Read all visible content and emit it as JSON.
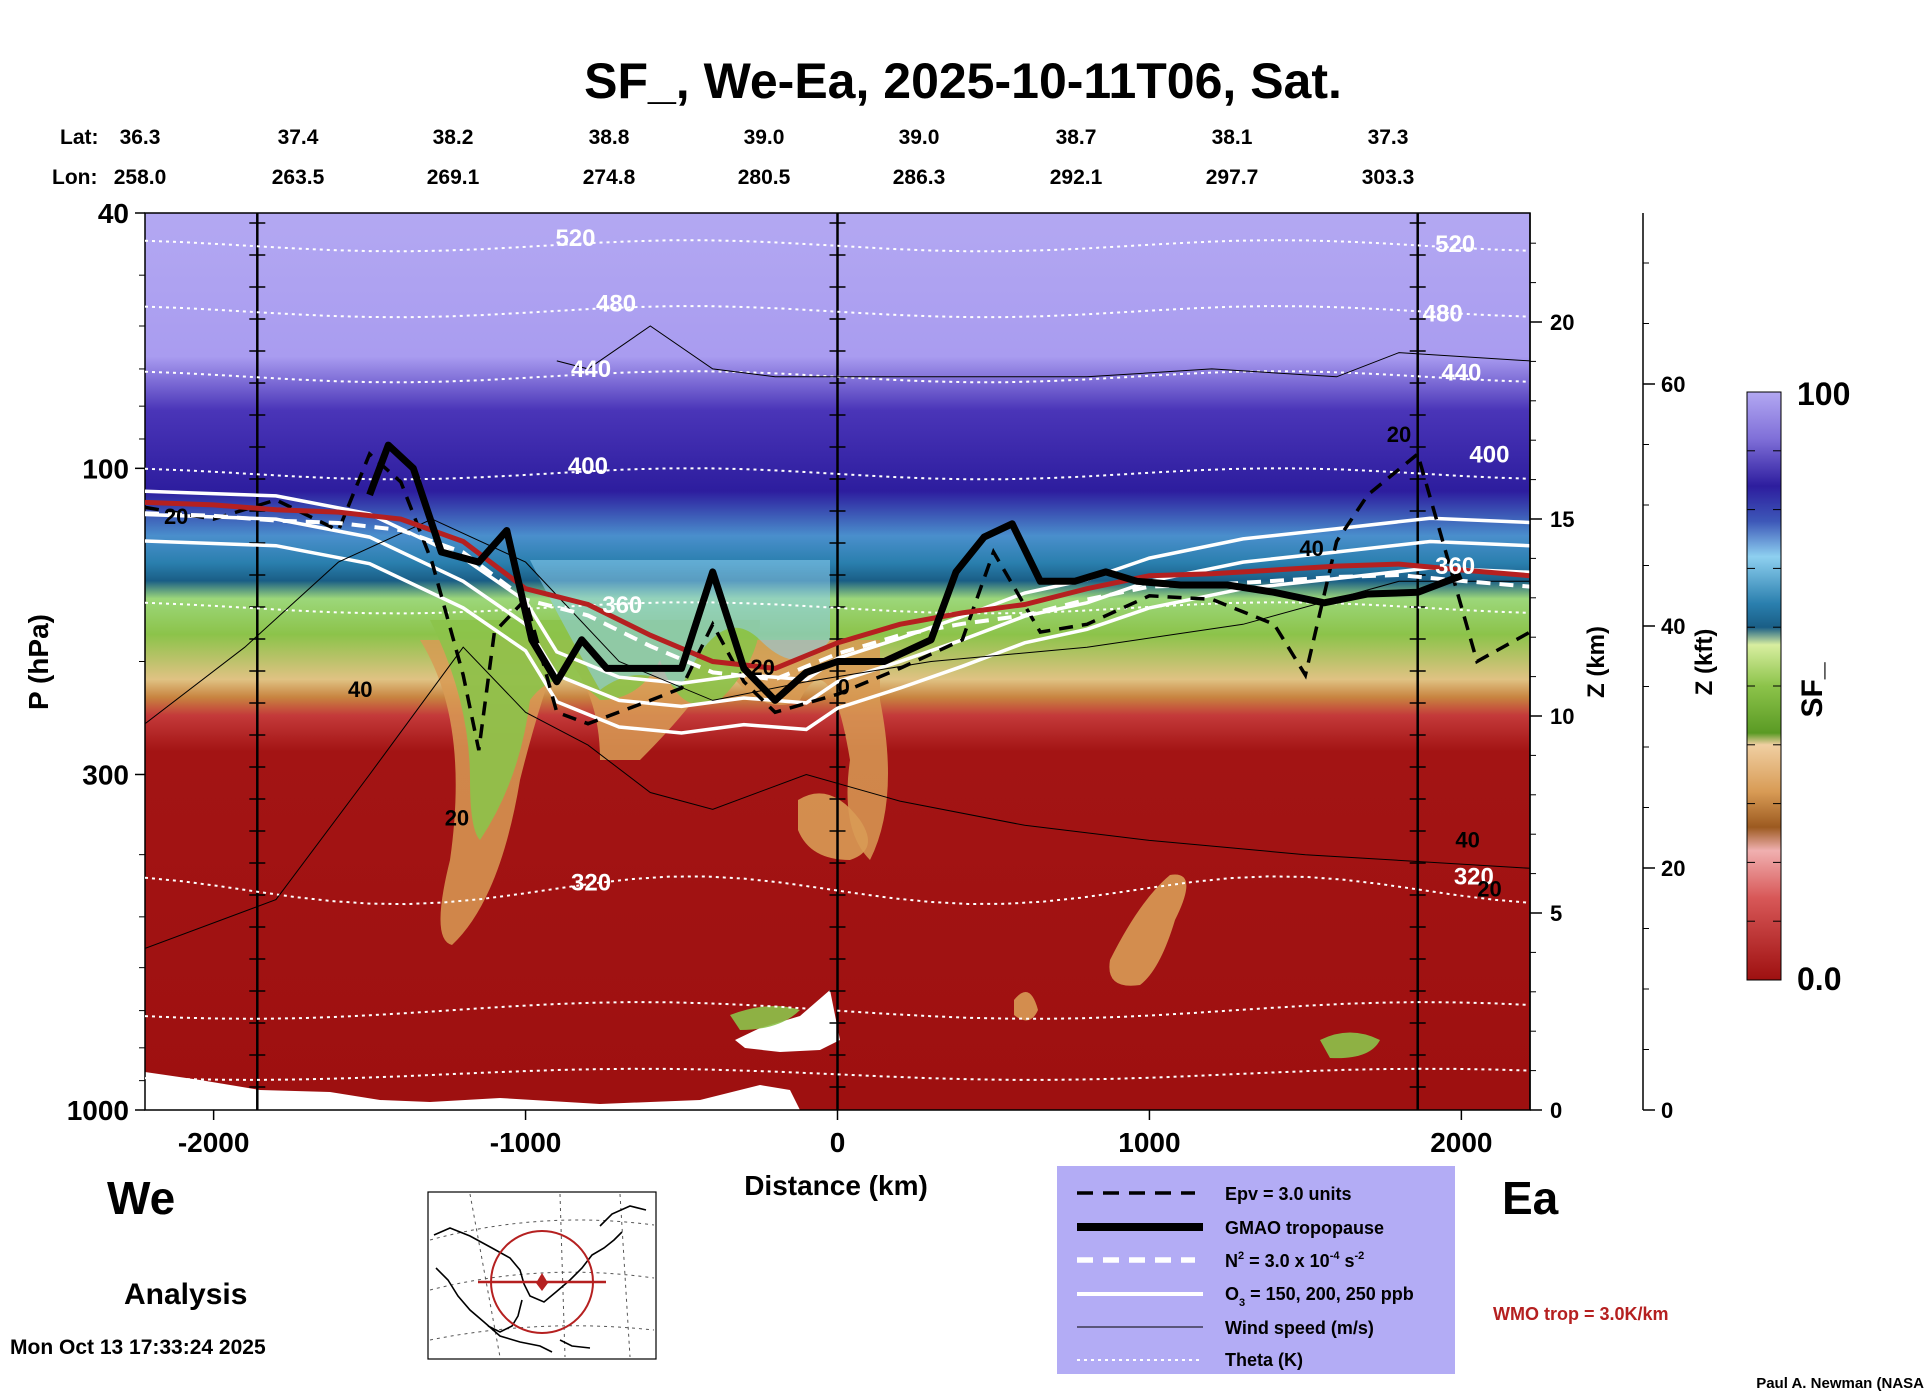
{
  "title": "SF_, We-Ea, 2025-10-11T06, Sat.",
  "lat_label": "Lat:",
  "lon_label": "Lon:",
  "lat_values": [
    "36.3",
    "37.4",
    "38.2",
    "38.8",
    "39.0",
    "39.0",
    "38.7",
    "38.1",
    "37.3"
  ],
  "lon_values": [
    "258.0",
    "263.5",
    "269.1",
    "274.8",
    "280.5",
    "286.3",
    "292.1",
    "297.7",
    "303.3"
  ],
  "left_word": "We",
  "right_word": "Ea",
  "analysis_label": "Analysis",
  "timestamp": "Mon Oct 13 17:33:24 2025",
  "credit": "Paul A. Newman (NASA",
  "wmo_note": "WMO trop = 3.0K/km",
  "legend": {
    "epv": "Epv = 3.0 units",
    "gmao": "GMAO tropopause",
    "n2_main": "N",
    "n2_sup": "2",
    "n2_rest": " = 3.0 x 10",
    "n2_exp": "-4",
    "n2_unit": " s",
    "n2_unit_exp": "-2",
    "o3_main": "O",
    "o3_sub": "3",
    "o3_rest": " = 150, 200, 250 ppb",
    "wind": "Wind speed (m/s)",
    "theta": "Theta (K)"
  },
  "colors": {
    "stratosphere_top": "#b3a8f2",
    "dark_blue": "#2d1d9e",
    "teal": "#2a7fae",
    "light_blue": "#8ed0f0",
    "green": "#8cc34a",
    "tan": "#d89b55",
    "red": "#a31414",
    "wmo_line": "#b52020",
    "legend_bg": "#b3acf5"
  },
  "chart_data": {
    "type": "heatmap",
    "variable": "SF_",
    "xlabel": "Distance (km)",
    "ylabel": "P (hPa)",
    "xlim": [
      -2220,
      2220
    ],
    "ylim": [
      1000,
      40
    ],
    "y_scale": "log",
    "x_ticks": [
      "-2000",
      "-1000",
      "0",
      "1000",
      "2000"
    ],
    "x_tick_values": [
      -2000,
      -1000,
      0,
      1000,
      2000
    ],
    "p_ticks": [
      "40",
      "100",
      "300",
      "1000"
    ],
    "p_tick_values": [
      40,
      100,
      300,
      1000
    ],
    "z_km_label": "Z (km)",
    "z_km_ticks": [
      "0",
      "5",
      "10",
      "15",
      "20"
    ],
    "z_km_values": [
      0,
      5,
      10,
      15,
      20
    ],
    "z_kft_label": "Z (kft)",
    "z_kft_ticks": [
      "0",
      "20",
      "40",
      "60"
    ],
    "z_kft_values": [
      0,
      20,
      40,
      60
    ],
    "colorbar_label": "SF_",
    "colorbar_range": [
      0.0,
      100
    ],
    "colorbar_min_label": "0.0",
    "colorbar_max_label": "100",
    "vertical_markers_km": [
      -1860,
      0,
      1860
    ],
    "theta_labels": [
      {
        "text": "520",
        "x": -840,
        "p": 45
      },
      {
        "text": "480",
        "x": -710,
        "p": 57
      },
      {
        "text": "440",
        "x": -790,
        "p": 72
      },
      {
        "text": "400",
        "x": -800,
        "p": 102
      },
      {
        "text": "360",
        "x": -690,
        "p": 168
      },
      {
        "text": "320",
        "x": -790,
        "p": 455
      },
      {
        "text": "520",
        "x": 1980,
        "p": 46
      },
      {
        "text": "480",
        "x": 1940,
        "p": 59
      },
      {
        "text": "440",
        "x": 2000,
        "p": 73
      },
      {
        "text": "400",
        "x": 2090,
        "p": 98
      },
      {
        "text": "360",
        "x": 1980,
        "p": 146
      },
      {
        "text": "320",
        "x": 2040,
        "p": 445
      }
    ],
    "wind_labels": [
      {
        "text": "20",
        "x": -2120,
        "p": 122
      },
      {
        "text": "40",
        "x": -1530,
        "p": 227
      },
      {
        "text": "20",
        "x": -1220,
        "p": 360
      },
      {
        "text": "20",
        "x": -240,
        "p": 210
      },
      {
        "text": "0",
        "x": 20,
        "p": 225
      },
      {
        "text": "20",
        "x": 1800,
        "p": 91
      },
      {
        "text": "40",
        "x": 1520,
        "p": 137
      },
      {
        "text": "40",
        "x": 2020,
        "p": 390
      },
      {
        "text": "20",
        "x": 2090,
        "p": 465
      }
    ],
    "theta_isentropes_K": [
      320,
      360,
      400,
      440,
      480,
      520
    ],
    "gmao_tropopause": {
      "x": [
        -1500,
        -1440,
        -1360,
        -1270,
        -1150,
        -1060,
        -980,
        -900,
        -820,
        -740,
        -620,
        -500,
        -400,
        -300,
        -200,
        -100,
        0,
        150,
        300,
        380,
        470,
        560,
        650,
        760,
        860,
        960,
        1100,
        1250,
        1400,
        1560,
        1700,
        1860,
        2000
      ],
      "p": [
        110,
        92,
        100,
        135,
        140,
        125,
        185,
        215,
        185,
        205,
        205,
        205,
        145,
        205,
        230,
        208,
        200,
        200,
        185,
        145,
        128,
        122,
        150,
        150,
        145,
        150,
        152,
        152,
        156,
        162,
        157,
        156,
        147
      ]
    },
    "wmo_tropopause": {
      "x": [
        -2220,
        -2000,
        -1800,
        -1600,
        -1400,
        -1200,
        -1000,
        -800,
        -600,
        -400,
        -200,
        0,
        200,
        400,
        600,
        800,
        1000,
        1200,
        1400,
        1600,
        1800,
        2000,
        2220
      ],
      "p": [
        113,
        114,
        116,
        117,
        120,
        130,
        154,
        163,
        182,
        200,
        205,
        187,
        175,
        168,
        163,
        154,
        147,
        146,
        144,
        142,
        141,
        144,
        147
      ]
    },
    "o3_contours_ppb": [
      150,
      200,
      250
    ]
  }
}
